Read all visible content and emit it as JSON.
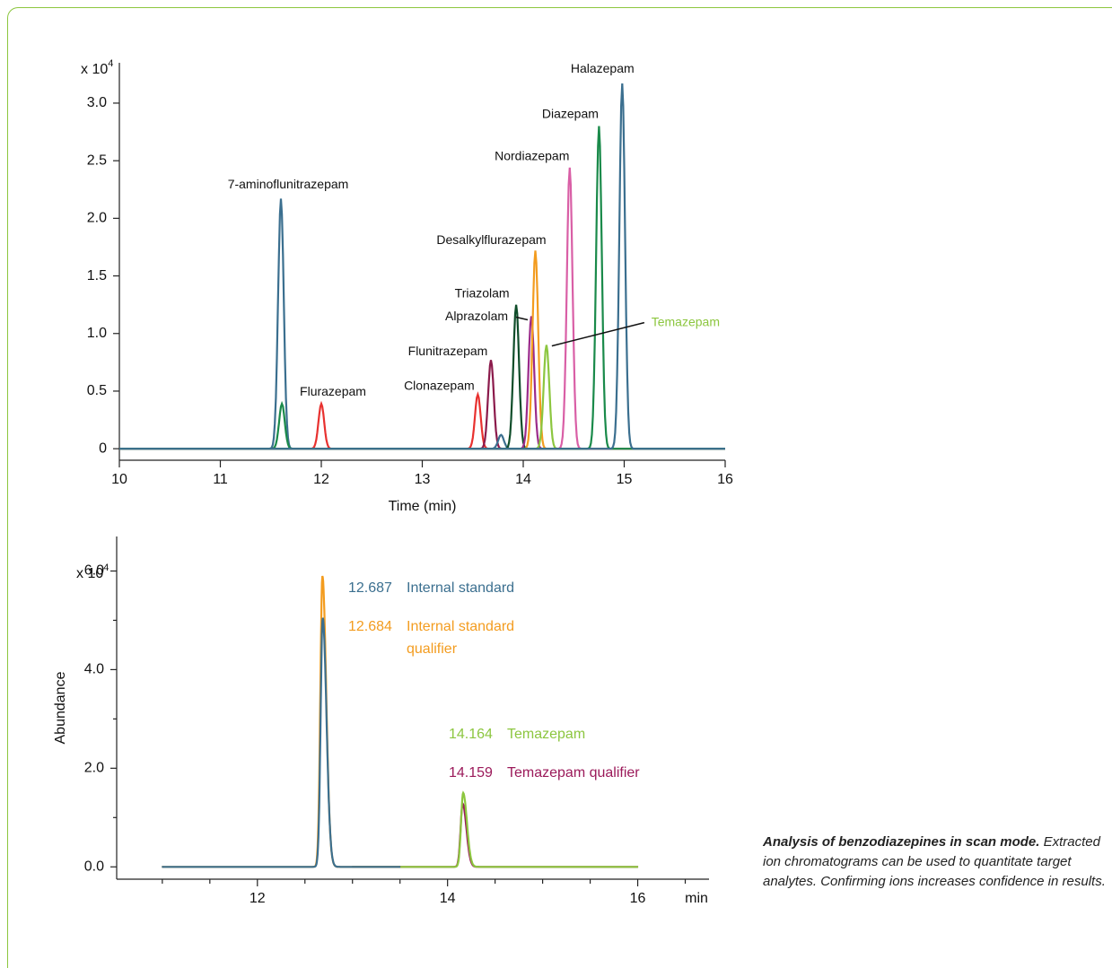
{
  "chart_data": [
    {
      "type": "chromatogram",
      "xlabel": "Time (min)",
      "y_scale": {
        "base": "x 10",
        "exponent": "4"
      },
      "xlim": [
        10,
        16
      ],
      "ylim": [
        -0.1,
        3.35
      ],
      "xticks": [
        10,
        11,
        12,
        13,
        14,
        15,
        16
      ],
      "yticks": [
        0,
        0.5,
        {
          "value": 1,
          "label": "1.0"
        },
        1.5,
        {
          "value": 2,
          "label": "2.0"
        },
        2.5,
        {
          "value": 3,
          "label": "3.0"
        }
      ],
      "series": [
        {
          "name": "7-aminoflunitrazepam",
          "color": "#3b6f8f",
          "x": 11.6,
          "value": 2.17
        },
        {
          "name": null,
          "color": "#1a8a4a",
          "x": 11.61,
          "value": 0.39
        },
        {
          "name": "Flurazepam",
          "color": "#e8312f",
          "x": 12.0,
          "value": 0.39
        },
        {
          "name": "Clonazepam",
          "color": "#e8312f",
          "x": 13.55,
          "value": 0.47
        },
        {
          "name": "Flunitrazepam",
          "color": "#8b1a4b",
          "x": 13.68,
          "value": 0.77
        },
        {
          "name": null,
          "color": "#3b6f8f",
          "x": 13.78,
          "value": 0.12
        },
        {
          "name": "Triazolam",
          "color": "#0f4d2a",
          "x": 13.93,
          "value": 1.25
        },
        {
          "name": "Alprazolam",
          "color": "#9b2a8a",
          "x": 14.08,
          "value": 1.15
        },
        {
          "name": "Desalkylflurazepam",
          "color": "#f39c1f",
          "x": 14.12,
          "value": 1.72
        },
        {
          "name": "Temazepam",
          "color": "#8cc63f",
          "label_color": "#8cc63f",
          "x": 14.23,
          "value": 0.9
        },
        {
          "name": "Nordiazepam",
          "color": "#d95fa6",
          "x": 14.46,
          "value": 2.44
        },
        {
          "name": "Diazepam",
          "color": "#1a8a4a",
          "x": 14.75,
          "value": 2.8
        },
        {
          "name": "Halazepam",
          "color": "#3b6f8f",
          "x": 14.98,
          "value": 3.17
        }
      ]
    },
    {
      "type": "chromatogram",
      "ylabel": "Abundance",
      "xunit": "min",
      "y_scale": {
        "base": "x 10",
        "exponent": "4"
      },
      "xlim": [
        10.52,
        16.75
      ],
      "ylim": [
        -0.25,
        6.7
      ],
      "xticks": [
        12,
        14,
        16
      ],
      "xminor": [
        11,
        11.5,
        12.5,
        13,
        13.5,
        14.5,
        15,
        15.5,
        16.5
      ],
      "yticks": [
        {
          "value": 0,
          "label": "0.0"
        },
        {
          "value": 2,
          "label": "2.0"
        },
        {
          "value": 4,
          "label": "4.0"
        },
        {
          "value": 6,
          "label": "6.0"
        }
      ],
      "yminor": [
        1,
        3,
        5
      ],
      "series": [
        {
          "name": "Internal standard",
          "color": "#3b6f8f",
          "x": 12.687,
          "value": 5.05,
          "xrange": [
            11,
            13.5
          ]
        },
        {
          "name": "Internal standard qualifier",
          "color": "#f39c1f",
          "x": 12.684,
          "value": 5.9,
          "xrange": [
            11,
            13.5
          ]
        },
        {
          "name": "Temazepam",
          "color": "#8cc63f",
          "x": 14.164,
          "value": 1.5,
          "xrange": [
            13,
            16
          ]
        },
        {
          "name": "Temazepam qualifier",
          "color": "#9b1a5a",
          "x": 14.159,
          "value": 1.28,
          "xrange": [
            13,
            16
          ]
        }
      ]
    }
  ],
  "caption": {
    "title": "Analysis of benzodiazepines in scan mode.",
    "text": "Extracted ion chromatograms can be used to quantitate target analytes. Confirming ions increases confidence in results."
  }
}
